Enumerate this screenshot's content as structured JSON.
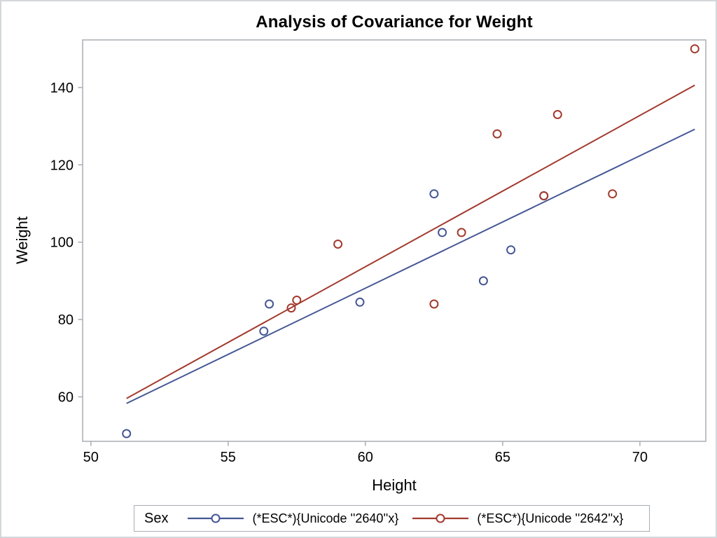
{
  "window": {
    "background": "#ffffff",
    "outer_border_color": "#d4d7da"
  },
  "chart": {
    "title": "Analysis of Covariance for Weight",
    "x_label": "Height",
    "y_label": "Weight"
  },
  "legend": {
    "title": "Sex",
    "entries": [
      {
        "id": "female",
        "label": "(*ESC*){Unicode ''2640''x}",
        "color": "#445694"
      },
      {
        "id": "male",
        "label": "(*ESC*){Unicode ''2642''x}",
        "color": "#A23A2E"
      }
    ]
  },
  "chart_data": {
    "type": "scatter",
    "title": "Analysis of Covariance for Weight",
    "xlabel": "Height",
    "ylabel": "Weight",
    "xlim": [
      49.7,
      72.4
    ],
    "ylim": [
      48.5,
      152.3
    ],
    "x_ticks": [
      50,
      55,
      60,
      65,
      70
    ],
    "y_ticks": [
      60,
      80,
      100,
      120,
      140
    ],
    "grid": false,
    "legend_position": "bottom",
    "colors": {
      "frame": "#a9aeb3",
      "tick_text": "#000000"
    },
    "series": [
      {
        "id": "female",
        "name": "(*ESC*){Unicode ''2640''x}",
        "color": "#445694",
        "marker": "open-circle",
        "points": [
          [
            51.3,
            50.5
          ],
          [
            56.3,
            77.0
          ],
          [
            56.5,
            84.0
          ],
          [
            59.8,
            84.5
          ],
          [
            62.5,
            112.5
          ],
          [
            62.8,
            102.5
          ],
          [
            64.3,
            90.0
          ],
          [
            65.3,
            98.0
          ],
          [
            66.5,
            112.0
          ]
        ],
        "fit_line": {
          "x": [
            51.3,
            72.0
          ],
          "y": [
            58.3,
            129.2
          ]
        }
      },
      {
        "id": "male",
        "name": "(*ESC*){Unicode ''2642''x}",
        "color": "#A23A2E",
        "marker": "open-circle",
        "points": [
          [
            57.3,
            83.0
          ],
          [
            57.5,
            85.0
          ],
          [
            59.0,
            99.5
          ],
          [
            62.5,
            84.0
          ],
          [
            63.5,
            102.5
          ],
          [
            64.8,
            128.0
          ],
          [
            66.5,
            112.0
          ],
          [
            67.0,
            133.0
          ],
          [
            69.0,
            112.5
          ],
          [
            72.0,
            150.0
          ]
        ],
        "fit_line": {
          "x": [
            51.3,
            72.0
          ],
          "y": [
            59.6,
            140.6
          ]
        }
      }
    ]
  }
}
